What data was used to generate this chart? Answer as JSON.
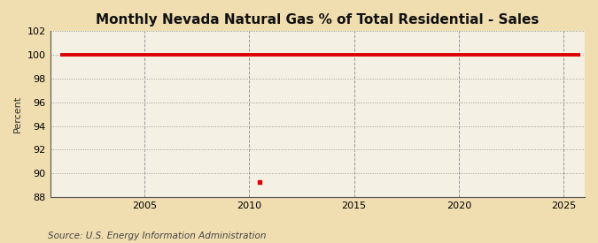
{
  "title": "Monthly Nevada Natural Gas % of Total Residential - Sales",
  "ylabel": "Percent",
  "source": "Source: U.S. Energy Information Administration",
  "xlim": [
    2000.5,
    2026
  ],
  "ylim": [
    88,
    102
  ],
  "yticks": [
    88,
    90,
    92,
    94,
    96,
    98,
    100,
    102
  ],
  "xticks": [
    2005,
    2010,
    2015,
    2020,
    2025
  ],
  "line_color": "#dd0000",
  "line_y": 100.0,
  "x_start": 2001.0,
  "x_end": 2025.8,
  "dot_x": 2010.5,
  "dot_y": 89.3,
  "dot_color": "#dd0000",
  "background_color": "#f0deb0",
  "plot_bg_color": "#f5f0e4",
  "grid_color": "#999999",
  "title_fontsize": 11,
  "label_fontsize": 8,
  "tick_fontsize": 8,
  "source_fontsize": 7.5
}
